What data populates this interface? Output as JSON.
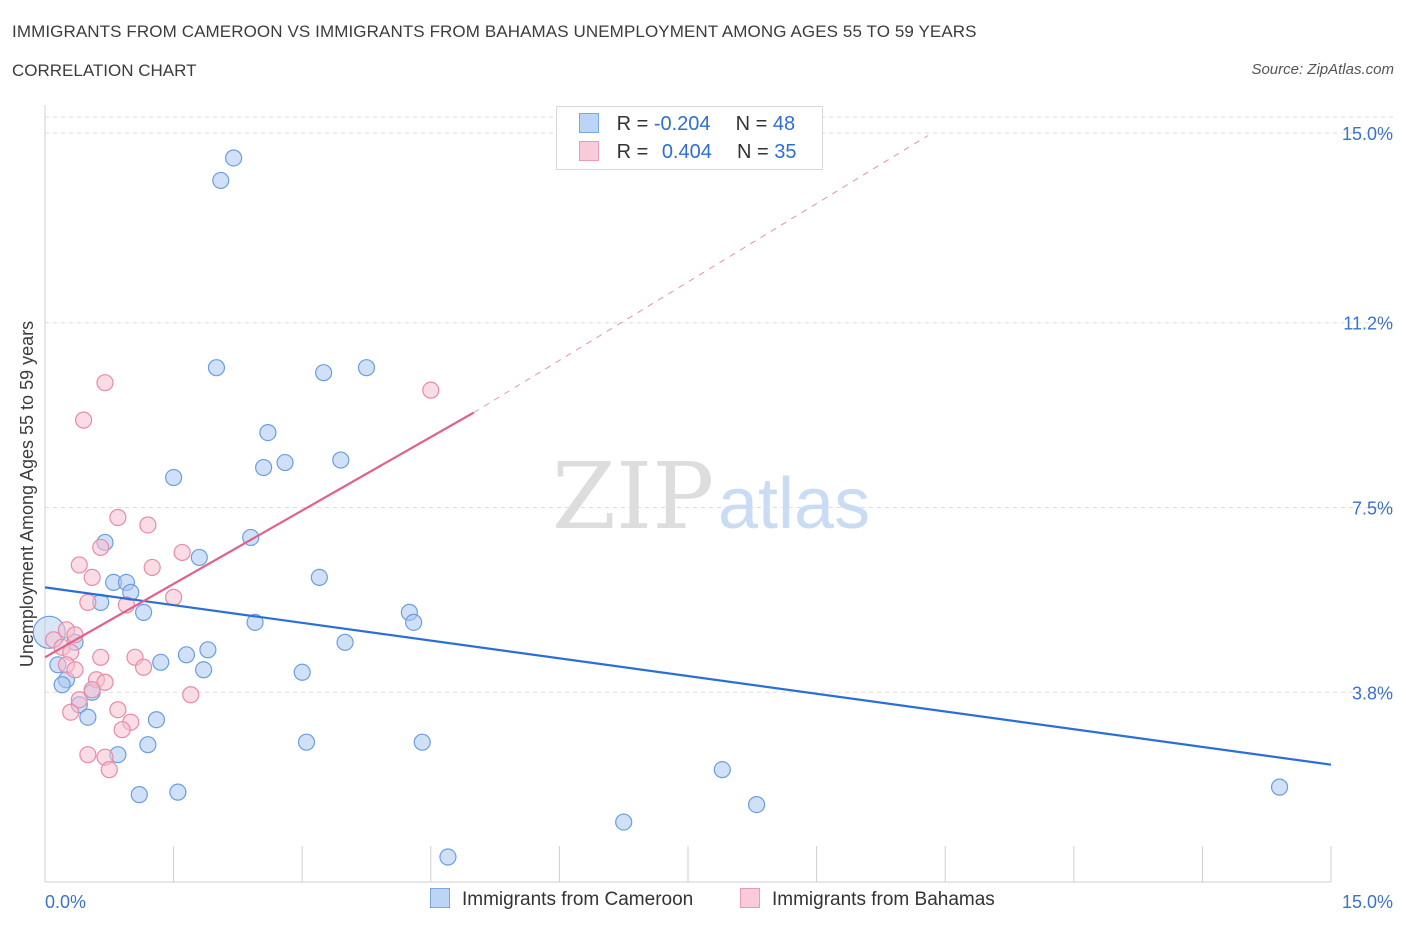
{
  "header": {
    "title": "IMMIGRANTS FROM CAMEROON VS IMMIGRANTS FROM BAHAMAS UNEMPLOYMENT AMONG AGES 55 TO 59 YEARS",
    "subtitle": "CORRELATION CHART",
    "source": "Source: ZipAtlas.com"
  },
  "legend": {
    "rows": [
      {
        "r_label": "R =",
        "r_value": "-0.204",
        "n_label": "N =",
        "n_value": "48"
      },
      {
        "r_label": "R =",
        "r_value": "0.404",
        "n_label": "N =",
        "n_value": "35"
      }
    ],
    "series": [
      "Immigrants from Cameroon",
      "Immigrants from Bahamas"
    ]
  },
  "watermark": {
    "zip": "ZIP",
    "atlas": "atlas"
  },
  "colors": {
    "blue_fill": "#a9c8f0",
    "blue_stroke": "#6a9ee0",
    "blue_line": "#2a6fd6",
    "pink_fill": "#f6bfd0",
    "pink_stroke": "#e88aa8",
    "pink_line": "#e0628c",
    "axis_text": "#3a73c8",
    "grid": "#dddddd"
  },
  "chart_data": {
    "type": "scatter",
    "title": "IMMIGRANTS FROM CAMEROON VS IMMIGRANTS FROM BAHAMAS UNEMPLOYMENT AMONG AGES 55 TO 59 YEARS",
    "xlabel": "",
    "ylabel": "Unemployment Among Ages 55 to 59 years",
    "xlim": [
      0,
      15
    ],
    "ylim": [
      0,
      15
    ],
    "x_tick_labels": [
      "0.0%",
      "15.0%"
    ],
    "y_ticks": [
      3.8,
      7.5,
      11.2,
      15.0
    ],
    "y_tick_labels": [
      "3.8%",
      "7.5%",
      "11.2%",
      "15.0%"
    ],
    "grid": true,
    "series": [
      {
        "name": "Immigrants from Cameroon",
        "color": "#a9c8f0",
        "points": [
          [
            2.2,
            14.5
          ],
          [
            2.05,
            14.05
          ],
          [
            2.0,
            10.3
          ],
          [
            3.25,
            10.2
          ],
          [
            3.75,
            10.3
          ],
          [
            2.6,
            9.0
          ],
          [
            2.55,
            8.3
          ],
          [
            2.8,
            8.4
          ],
          [
            3.45,
            8.45
          ],
          [
            1.5,
            8.1
          ],
          [
            2.4,
            6.9
          ],
          [
            1.8,
            6.5
          ],
          [
            0.7,
            6.8
          ],
          [
            3.2,
            6.1
          ],
          [
            0.8,
            6.0
          ],
          [
            0.95,
            6.0
          ],
          [
            1.0,
            5.8
          ],
          [
            0.65,
            5.6
          ],
          [
            1.15,
            5.4
          ],
          [
            4.25,
            5.4
          ],
          [
            4.3,
            5.2
          ],
          [
            2.45,
            5.2
          ],
          [
            3.5,
            4.8
          ],
          [
            0.35,
            4.8
          ],
          [
            1.9,
            4.65
          ],
          [
            1.65,
            4.55
          ],
          [
            1.85,
            4.25
          ],
          [
            0.15,
            4.35
          ],
          [
            0.25,
            4.05
          ],
          [
            3.0,
            4.2
          ],
          [
            1.35,
            4.4
          ],
          [
            0.2,
            3.95
          ],
          [
            0.55,
            3.8
          ],
          [
            0.4,
            3.55
          ],
          [
            0.5,
            3.3
          ],
          [
            1.3,
            3.25
          ],
          [
            0.85,
            2.55
          ],
          [
            1.2,
            2.75
          ],
          [
            3.05,
            2.8
          ],
          [
            4.4,
            2.8
          ],
          [
            7.9,
            2.25
          ],
          [
            1.1,
            1.75
          ],
          [
            1.55,
            1.8
          ],
          [
            8.3,
            1.55
          ],
          [
            14.4,
            1.9
          ],
          [
            6.75,
            1.2
          ],
          [
            4.7,
            0.5
          ],
          [
            0.05,
            5.0
          ]
        ]
      },
      {
        "name": "Immigrants from Bahamas",
        "color": "#f6bfd0",
        "points": [
          [
            0.7,
            10.0
          ],
          [
            4.5,
            9.85
          ],
          [
            0.45,
            9.25
          ],
          [
            0.85,
            7.3
          ],
          [
            1.2,
            7.15
          ],
          [
            0.65,
            6.7
          ],
          [
            1.6,
            6.6
          ],
          [
            0.4,
            6.35
          ],
          [
            1.25,
            6.3
          ],
          [
            0.55,
            6.1
          ],
          [
            1.5,
            5.7
          ],
          [
            0.5,
            5.6
          ],
          [
            0.95,
            5.55
          ],
          [
            0.25,
            5.05
          ],
          [
            0.1,
            4.85
          ],
          [
            0.2,
            4.7
          ],
          [
            0.3,
            4.6
          ],
          [
            0.65,
            4.5
          ],
          [
            1.05,
            4.5
          ],
          [
            0.25,
            4.35
          ],
          [
            0.35,
            4.25
          ],
          [
            1.15,
            4.3
          ],
          [
            0.6,
            4.05
          ],
          [
            0.7,
            4.0
          ],
          [
            0.55,
            3.85
          ],
          [
            1.7,
            3.75
          ],
          [
            0.4,
            3.65
          ],
          [
            0.85,
            3.45
          ],
          [
            0.3,
            3.4
          ],
          [
            1.0,
            3.2
          ],
          [
            0.9,
            3.05
          ],
          [
            0.7,
            2.5
          ],
          [
            0.75,
            2.25
          ],
          [
            0.35,
            4.95
          ],
          [
            0.5,
            2.55
          ]
        ]
      }
    ],
    "trendlines": [
      {
        "series": "Immigrants from Cameroon",
        "x": [
          0,
          15
        ],
        "y": [
          5.9,
          2.35
        ]
      },
      {
        "series": "Immigrants from Bahamas",
        "x": [
          0,
          5.0
        ],
        "y": [
          4.5,
          9.4
        ],
        "dashed_extension": {
          "x": [
            5.0,
            10.3
          ],
          "y": [
            9.4,
            14.95
          ]
        }
      }
    ]
  }
}
